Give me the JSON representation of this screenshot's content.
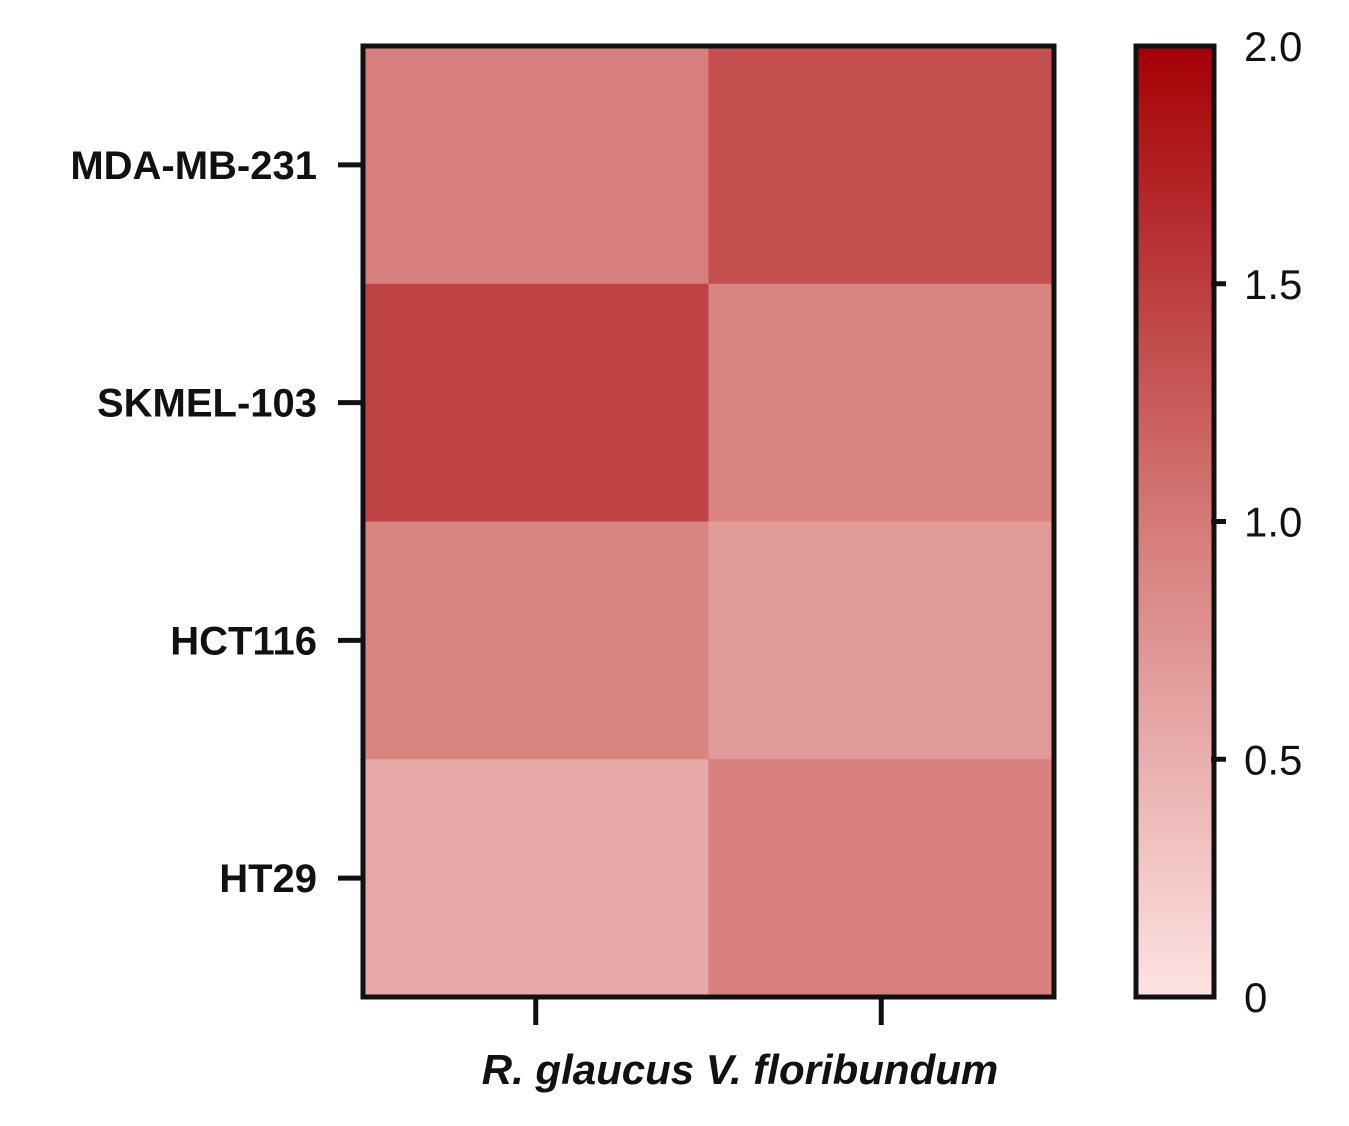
{
  "chart_data": {
    "type": "heatmap",
    "title": "",
    "rows": [
      "MDA-MB-231",
      "SKMEL-103",
      "HCT116",
      "HT29"
    ],
    "columns": [
      "R. glaucus",
      "V. floribundum"
    ],
    "values": [
      [
        0.95,
        1.35
      ],
      [
        1.45,
        0.9
      ],
      [
        0.9,
        0.7
      ],
      [
        0.55,
        0.95
      ]
    ],
    "xlabel": "R. glaucus V. floribundum",
    "ylabel": "",
    "colorbar": {
      "range": [
        0,
        2.0
      ],
      "ticks": [
        "0",
        "0.5",
        "1.0",
        "1.5",
        "2.0"
      ],
      "tick_values": [
        0,
        0.5,
        1.0,
        1.5,
        2.0
      ],
      "color_low": "#fde3e3",
      "color_mid": "#d47a77",
      "color_high": "#a50005"
    }
  }
}
